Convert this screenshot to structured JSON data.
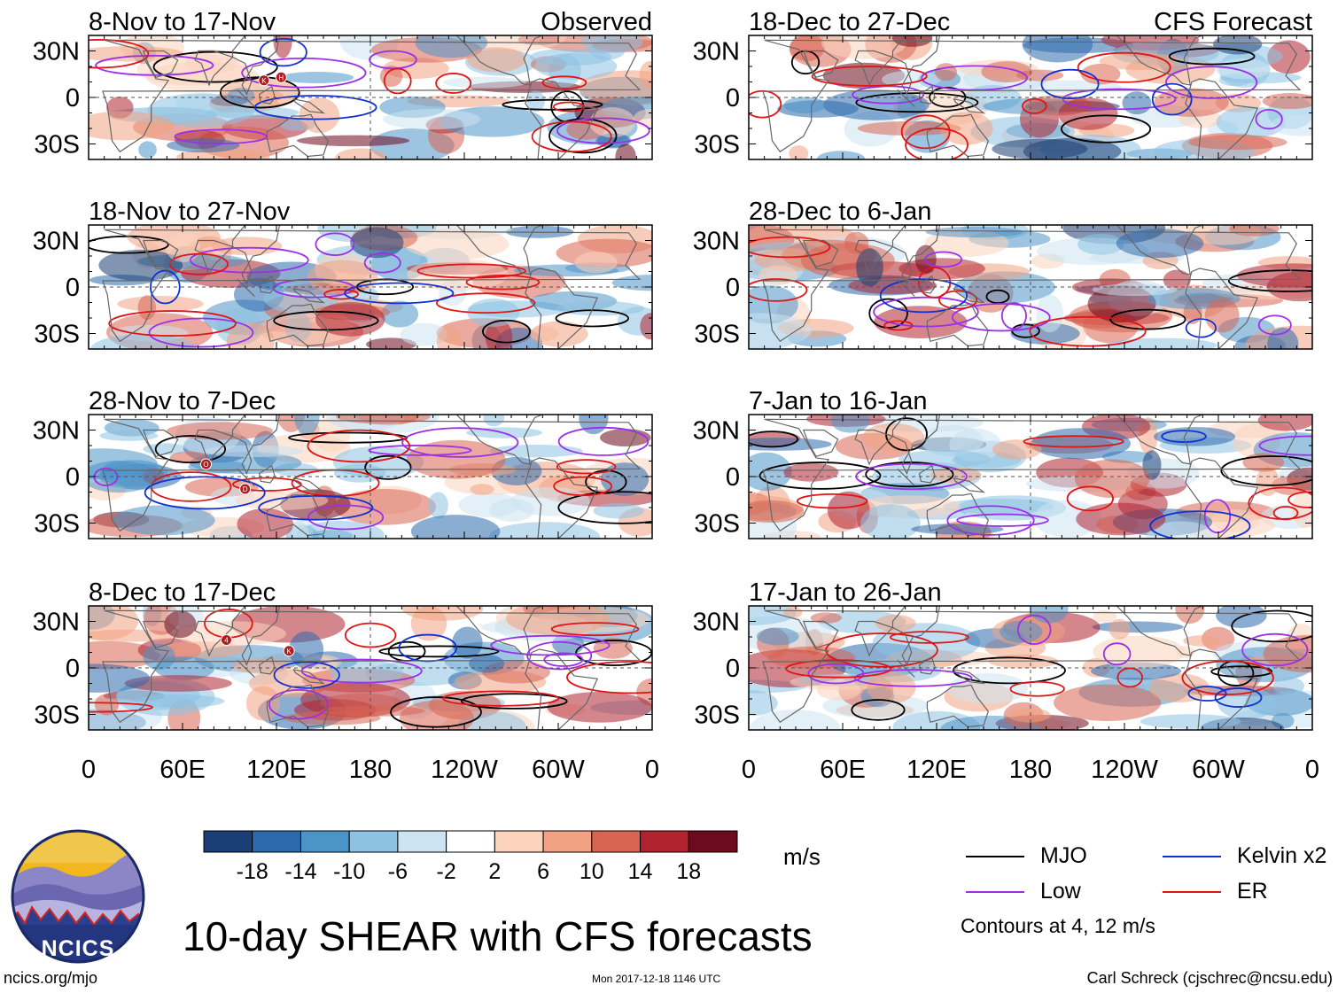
{
  "title": "10-day SHEAR with CFS forecasts",
  "units": "m/s",
  "contour_note": "Contours at 4, 12 m/s",
  "credit_left": "ncics.org/mjo",
  "timestamp": "Mon 2017-12-18 1146 UTC",
  "credit_right": "Carl Schreck (cjschrec@ncsu.edu)",
  "logo_text": "NCICS",
  "colors": {
    "mjo": "#000000",
    "low": "#9b30e8",
    "kelvin": "#1030d0",
    "er": "#e01515",
    "land": "#666666"
  },
  "legend": [
    {
      "label": "MJO",
      "color": "#000000"
    },
    {
      "label": "Kelvin x2",
      "color": "#1030d0"
    },
    {
      "label": "Low",
      "color": "#9b30e8"
    },
    {
      "label": "ER",
      "color": "#e01515"
    }
  ],
  "chart_data": {
    "type": "heatmap",
    "variable": "Vertical wind shear, 10-day mean",
    "colorbar": {
      "labels": [
        "-18",
        "-14",
        "-10",
        "-6",
        "-2",
        "2",
        "6",
        "10",
        "14",
        "18"
      ],
      "levels": [
        -18,
        -14,
        -10,
        -6,
        -2,
        2,
        6,
        10,
        14,
        18
      ],
      "colors": [
        "#1a3e75",
        "#2c6aad",
        "#4c94c8",
        "#8dc2e3",
        "#cce3f1",
        "#ffffff",
        "#fcd3bd",
        "#f2a282",
        "#d86552",
        "#b1222f",
        "#6c0a1e"
      ]
    },
    "x_ticks": [
      "0",
      "60E",
      "120E",
      "180",
      "120W",
      "60W",
      "0"
    ],
    "x_values": [
      0,
      60,
      120,
      180,
      240,
      300,
      360
    ],
    "y_ticks": [
      "30N",
      "0",
      "30S"
    ],
    "y_values": [
      30,
      0,
      -30
    ],
    "y_range": [
      -40,
      40
    ],
    "panels": [
      {
        "title": "8-Nov to 17-Nov",
        "tag": "Observed",
        "storms": [
          {
            "letter": "K",
            "lon": 112,
            "lat": 11
          },
          {
            "letter": "H",
            "lon": 123,
            "lat": 13
          }
        ]
      },
      {
        "title": "18-Nov to 27-Nov",
        "tag": "",
        "storms": []
      },
      {
        "title": "28-Nov to 7-Dec",
        "tag": "",
        "storms": [
          {
            "letter": "O",
            "lon": 75,
            "lat": 8
          },
          {
            "letter": "D",
            "lon": 100,
            "lat": -8
          }
        ]
      },
      {
        "title": "8-Dec to 17-Dec",
        "tag": "",
        "storms": [
          {
            "letter": "4",
            "lon": 88,
            "lat": 18
          },
          {
            "letter": "K",
            "lon": 128,
            "lat": 11
          }
        ]
      },
      {
        "title": "18-Dec to 27-Dec",
        "tag": "CFS Forecast",
        "storms": []
      },
      {
        "title": "28-Dec to 6-Jan",
        "tag": "",
        "storms": []
      },
      {
        "title": "7-Jan to 16-Jan",
        "tag": "",
        "storms": []
      },
      {
        "title": "17-Jan to 26-Jan",
        "tag": "",
        "storms": []
      }
    ]
  }
}
